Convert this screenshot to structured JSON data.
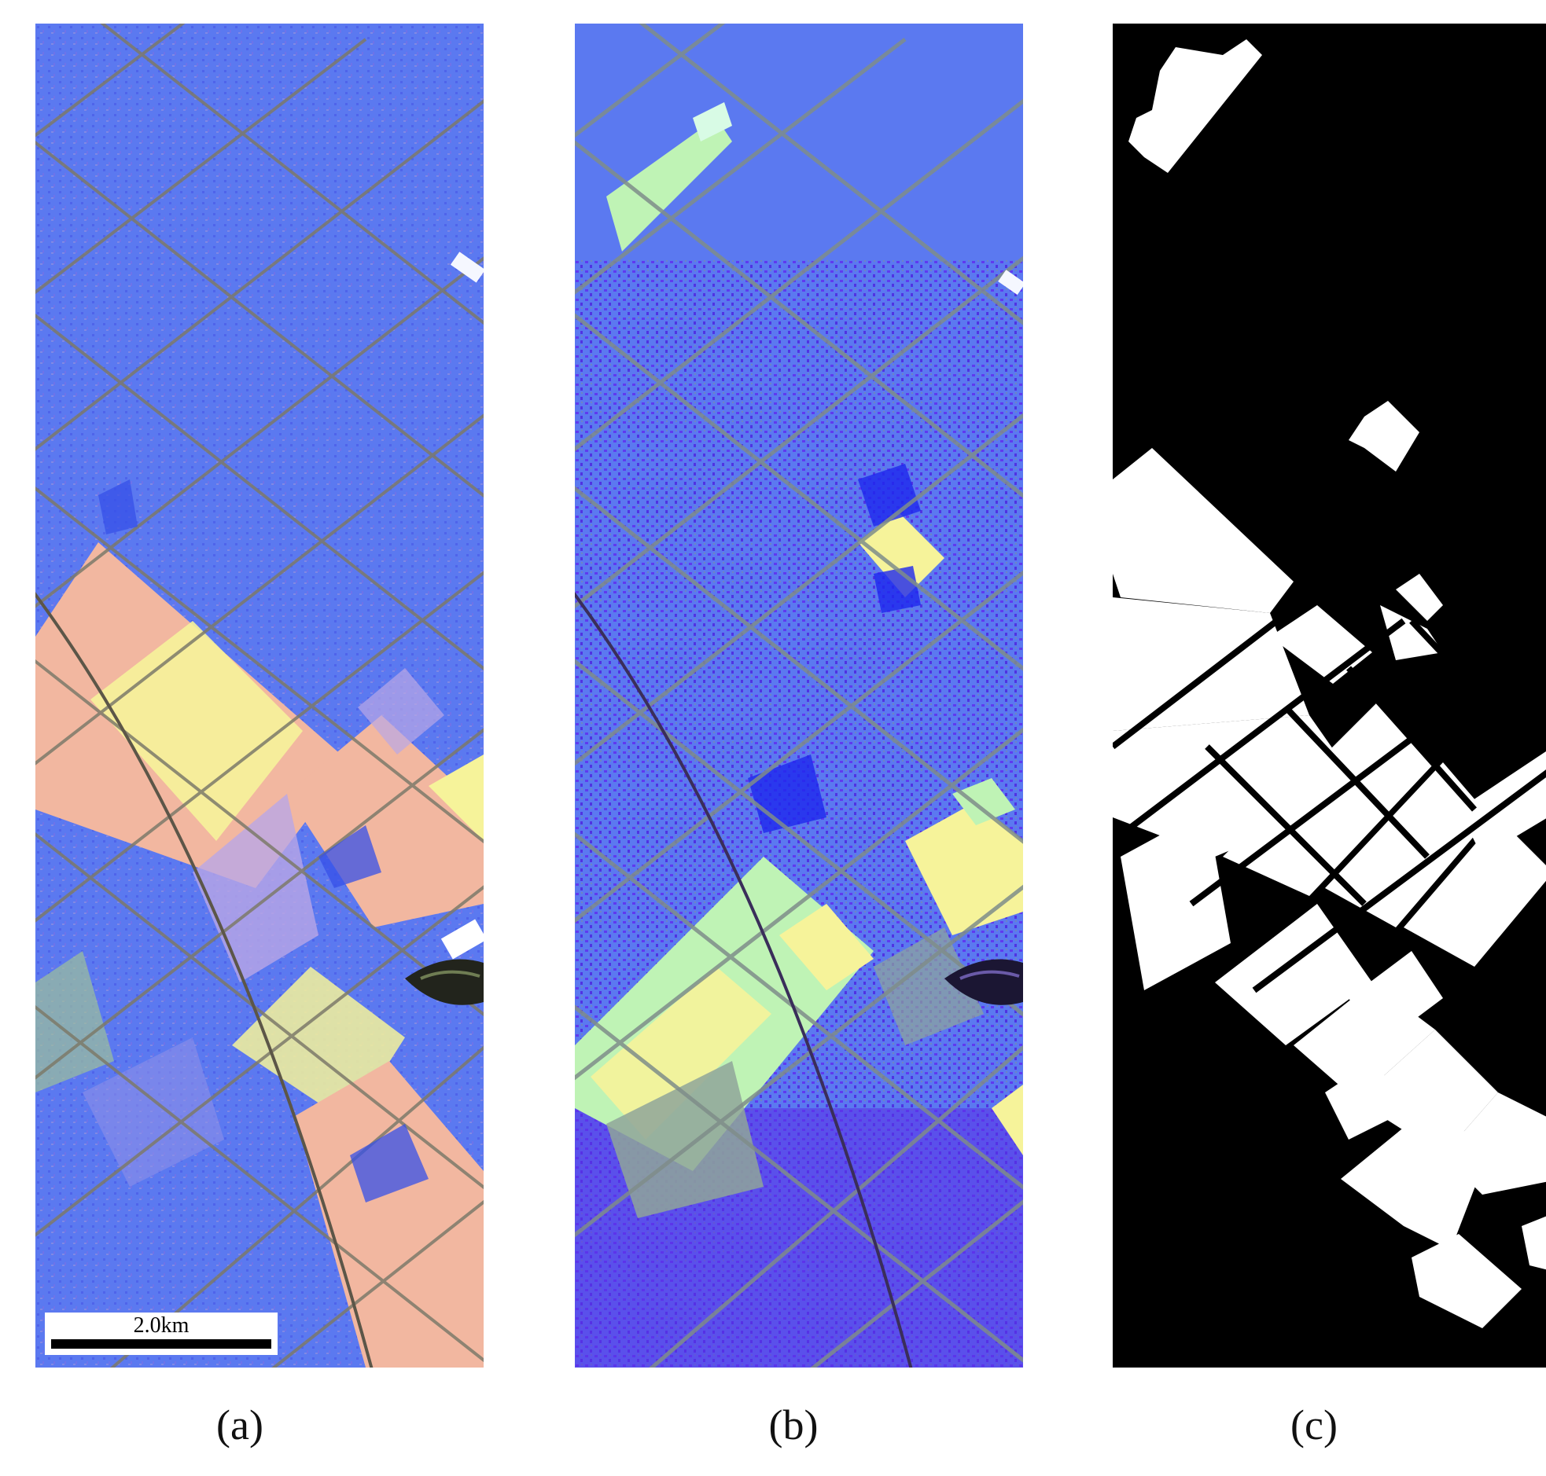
{
  "figure": {
    "panels": [
      {
        "id": "a",
        "caption": "(a)",
        "content": "false-color satellite image"
      },
      {
        "id": "b",
        "caption": "(b)",
        "content": "false-color satellite image"
      },
      {
        "id": "c",
        "caption": "(c)",
        "content": "binary map"
      }
    ],
    "scale_bar": {
      "label": "2.0km"
    }
  },
  "colors": {
    "blue_base": "#5b79f0",
    "violet": "#6a3ff0",
    "salmon": "#f2b7a0",
    "yellow": "#f6f39a",
    "pale_green": "#bff3b5",
    "gray_green": "#8fa59a",
    "road": "#7d7a6a",
    "binary_fg": "#ffffff",
    "binary_bg": "#000000"
  }
}
